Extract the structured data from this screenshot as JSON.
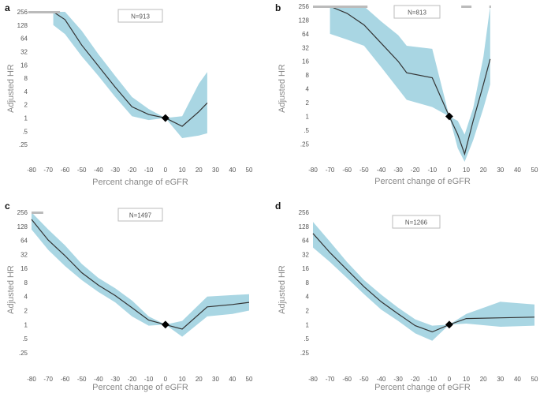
{
  "figure": {
    "ci_color": "#a9d6e3",
    "line_color": "#333333",
    "rug_color": "#bbbbbb",
    "marker_color": "#000000"
  },
  "chart_data": [
    {
      "type": "line",
      "panel": "a",
      "annotation": "N=913",
      "xlabel": "Percent change of eGFR",
      "ylabel": "Adjusted HR",
      "x_ticks": [
        "-80",
        "-70",
        "-60",
        "-50",
        "-40",
        "-30",
        "-20",
        "-10",
        "0",
        "10",
        "20",
        "30",
        "40",
        "50"
      ],
      "y_ticks": [
        "256",
        "128",
        "64",
        "32",
        "16",
        "8",
        "4",
        "2",
        "1",
        ".5",
        ".25"
      ],
      "xlim": [
        -80,
        50
      ],
      "ylim_log2": [
        -3.3,
        8
      ],
      "reference_point": {
        "x": 0,
        "y": 1
      },
      "x": [
        -67,
        -60,
        -50,
        -40,
        -30,
        -20,
        -10,
        0,
        10,
        20,
        25
      ],
      "y": [
        256,
        170,
        45,
        15,
        5,
        1.8,
        1.2,
        1,
        0.65,
        1.4,
        2.2
      ],
      "ci_lower": [
        128,
        80,
        25,
        9,
        3,
        1.1,
        0.9,
        1,
        0.35,
        0.4,
        0.45
      ],
      "ci_upper": [
        256,
        256,
        95,
        28,
        9,
        3,
        1.6,
        1,
        1.1,
        6,
        11
      ],
      "rug": [
        [
          -82,
          -63
        ]
      ]
    },
    {
      "type": "line",
      "panel": "b",
      "annotation": "N=813",
      "xlabel": "Percent change of eGFR",
      "ylabel": "Adjusted HR",
      "x_ticks": [
        "-80",
        "-70",
        "-60",
        "-50",
        "-40",
        "-30",
        "-20",
        "-10",
        "0",
        "10",
        "20",
        "30",
        "40",
        "50"
      ],
      "y_ticks": [
        "256",
        "128",
        "64",
        "32",
        "16",
        "8",
        "4",
        "2",
        "1",
        ".5",
        ".25"
      ],
      "xlim": [
        -80,
        50
      ],
      "ylim_log2": [
        -3.3,
        8
      ],
      "reference_point": {
        "x": 0,
        "y": 1
      },
      "x": [
        -70,
        -60,
        -50,
        -40,
        -30,
        -25,
        -10,
        0,
        5,
        9,
        14,
        20,
        24
      ],
      "y": [
        256,
        180,
        100,
        40,
        16,
        9,
        7,
        1,
        0.4,
        0.15,
        0.8,
        5,
        18
      ],
      "ci_lower": [
        64,
        48,
        35,
        12,
        4,
        2.3,
        1.6,
        1,
        0.2,
        0.1,
        0.3,
        1.5,
        5
      ],
      "ci_upper": [
        256,
        256,
        256,
        120,
        60,
        35,
        30,
        1,
        0.8,
        0.4,
        1.5,
        20,
        256
      ],
      "rug": [
        [
          -80,
          -48
        ],
        [
          7,
          13
        ],
        [
          23.5,
          24.5
        ]
      ]
    },
    {
      "type": "line",
      "panel": "c",
      "annotation": "N=1497",
      "xlabel": "Percent change of eGFR",
      "ylabel": "Adjusted HR",
      "x_ticks": [
        "-80",
        "-70",
        "-60",
        "-50",
        "-40",
        "-30",
        "-20",
        "-10",
        "0",
        "10",
        "20",
        "30",
        "40",
        "50"
      ],
      "y_ticks": [
        "256",
        "128",
        "64",
        "32",
        "16",
        "8",
        "4",
        "2",
        "1",
        ".5",
        ".25"
      ],
      "xlim": [
        -80,
        50
      ],
      "ylim_log2": [
        -3.3,
        8
      ],
      "reference_point": {
        "x": 0,
        "y": 1
      },
      "x": [
        -80,
        -70,
        -60,
        -50,
        -40,
        -30,
        -20,
        -10,
        0,
        10,
        25,
        40,
        50
      ],
      "y": [
        180,
        65,
        30,
        13,
        7,
        4.2,
        2.3,
        1.25,
        1,
        0.8,
        2.4,
        2.7,
        3
      ],
      "ci_lower": [
        110,
        40,
        18,
        9,
        5,
        3,
        1.5,
        0.95,
        1,
        0.55,
        1.5,
        1.7,
        2
      ],
      "ci_upper": [
        256,
        110,
        50,
        20,
        10,
        6,
        3.3,
        1.5,
        1,
        1.2,
        4,
        4.3,
        4.5
      ],
      "rug": [
        [
          -80,
          -73
        ]
      ]
    },
    {
      "type": "line",
      "panel": "d",
      "annotation": "N=1266",
      "xlabel": "Percent change of eGFR",
      "ylabel": "Adjusted HR",
      "x_ticks": [
        "-80",
        "-70",
        "-60",
        "-50",
        "-40",
        "-30",
        "-20",
        "-10",
        "0",
        "10",
        "20",
        "30",
        "40",
        "50"
      ],
      "y_ticks": [
        "256",
        "128",
        "64",
        "32",
        "16",
        "8",
        "4",
        "2",
        "1",
        ".5",
        ".25"
      ],
      "xlim": [
        -80,
        50
      ],
      "ylim_log2": [
        -3.3,
        8
      ],
      "reference_point": {
        "x": 0,
        "y": 1
      },
      "x": [
        -80,
        -70,
        -60,
        -50,
        -40,
        -30,
        -20,
        -10,
        0,
        10,
        30,
        50
      ],
      "y": [
        90,
        35,
        15,
        6.5,
        3.1,
        1.7,
        0.95,
        0.7,
        1,
        1.35,
        1.4,
        1.45
      ],
      "ci_lower": [
        45,
        22,
        10,
        4.5,
        2.1,
        1.2,
        0.65,
        0.45,
        1,
        1.05,
        0.9,
        0.95
      ],
      "ci_upper": [
        160,
        60,
        22,
        9,
        4.4,
        2.3,
        1.3,
        0.95,
        1,
        1.7,
        3.1,
        2.7
      ],
      "rug": []
    }
  ]
}
